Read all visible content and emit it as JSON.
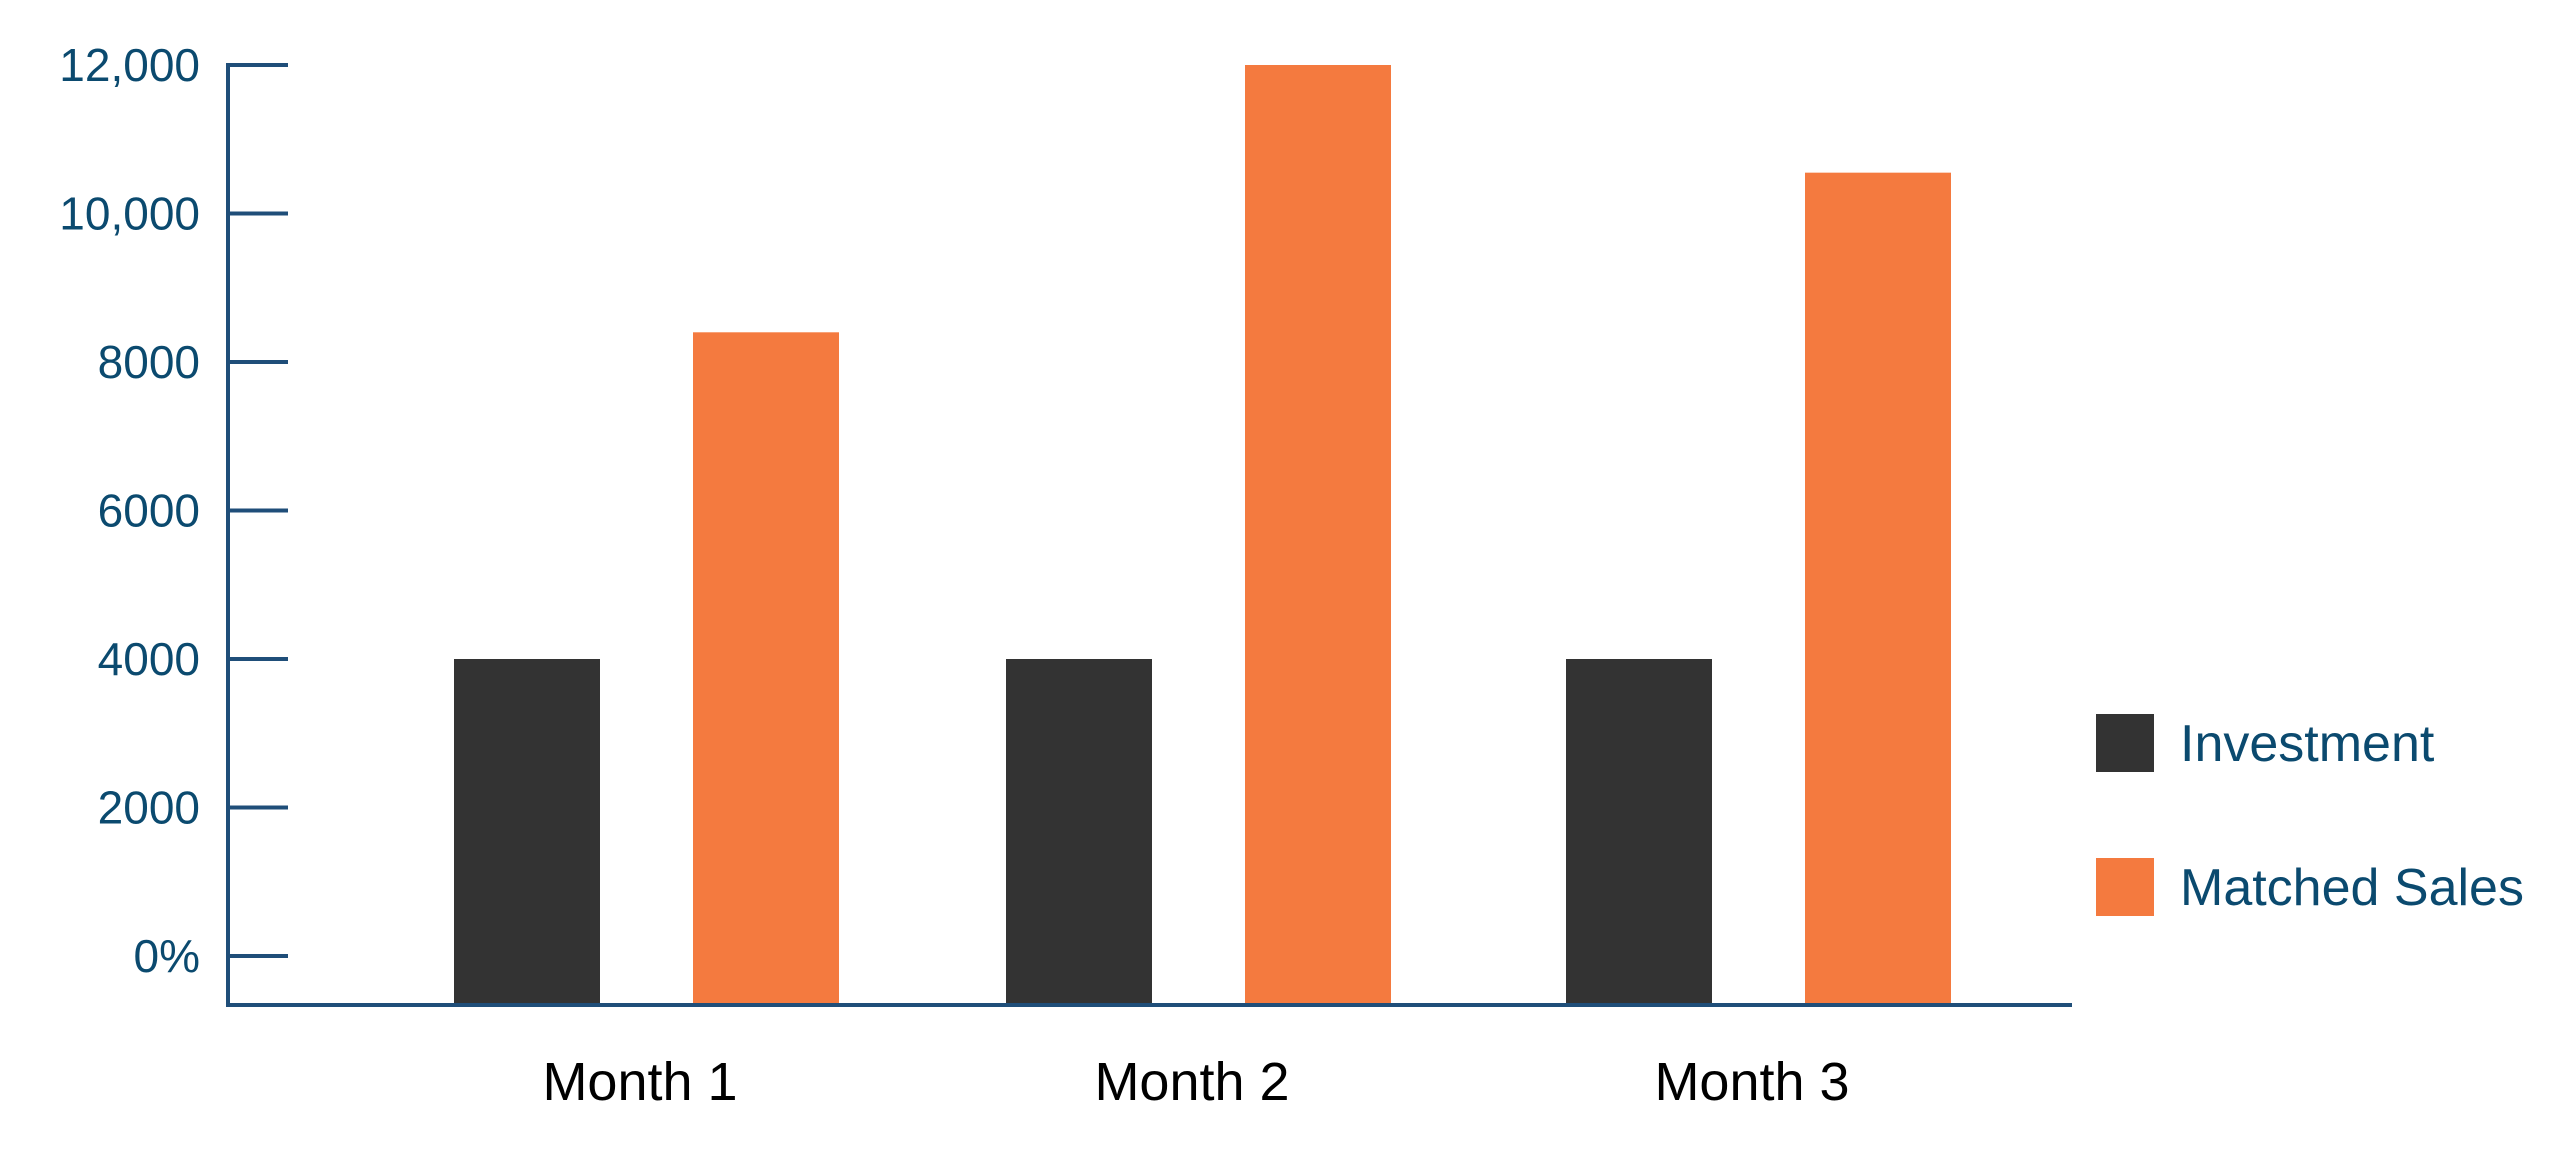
{
  "chart_data": {
    "type": "bar",
    "categories": [
      "Month 1",
      "Month 2",
      "Month 3"
    ],
    "series": [
      {
        "name": "Investment",
        "values": [
          4000,
          4000,
          4000
        ],
        "color": "#333333"
      },
      {
        "name": "Matched Sales",
        "values": [
          8400,
          12000,
          10550
        ],
        "color": "#f47a3f"
      }
    ],
    "title": "",
    "xlabel": "",
    "ylabel": "",
    "ylim": [
      0,
      12000
    ],
    "yticks": [
      {
        "value": 0,
        "label": "0%"
      },
      {
        "value": 2000,
        "label": "2000"
      },
      {
        "value": 4000,
        "label": "4000"
      },
      {
        "value": 6000,
        "label": "6000"
      },
      {
        "value": 8000,
        "label": "8000"
      },
      {
        "value": 10000,
        "label": "10,000"
      },
      {
        "value": 12000,
        "label": "12,000"
      }
    ],
    "grid": false,
    "legend": "right",
    "axis_color": "#1f4e79",
    "tick_label_color": "#0b4a6f",
    "category_label_color": "#000000"
  }
}
